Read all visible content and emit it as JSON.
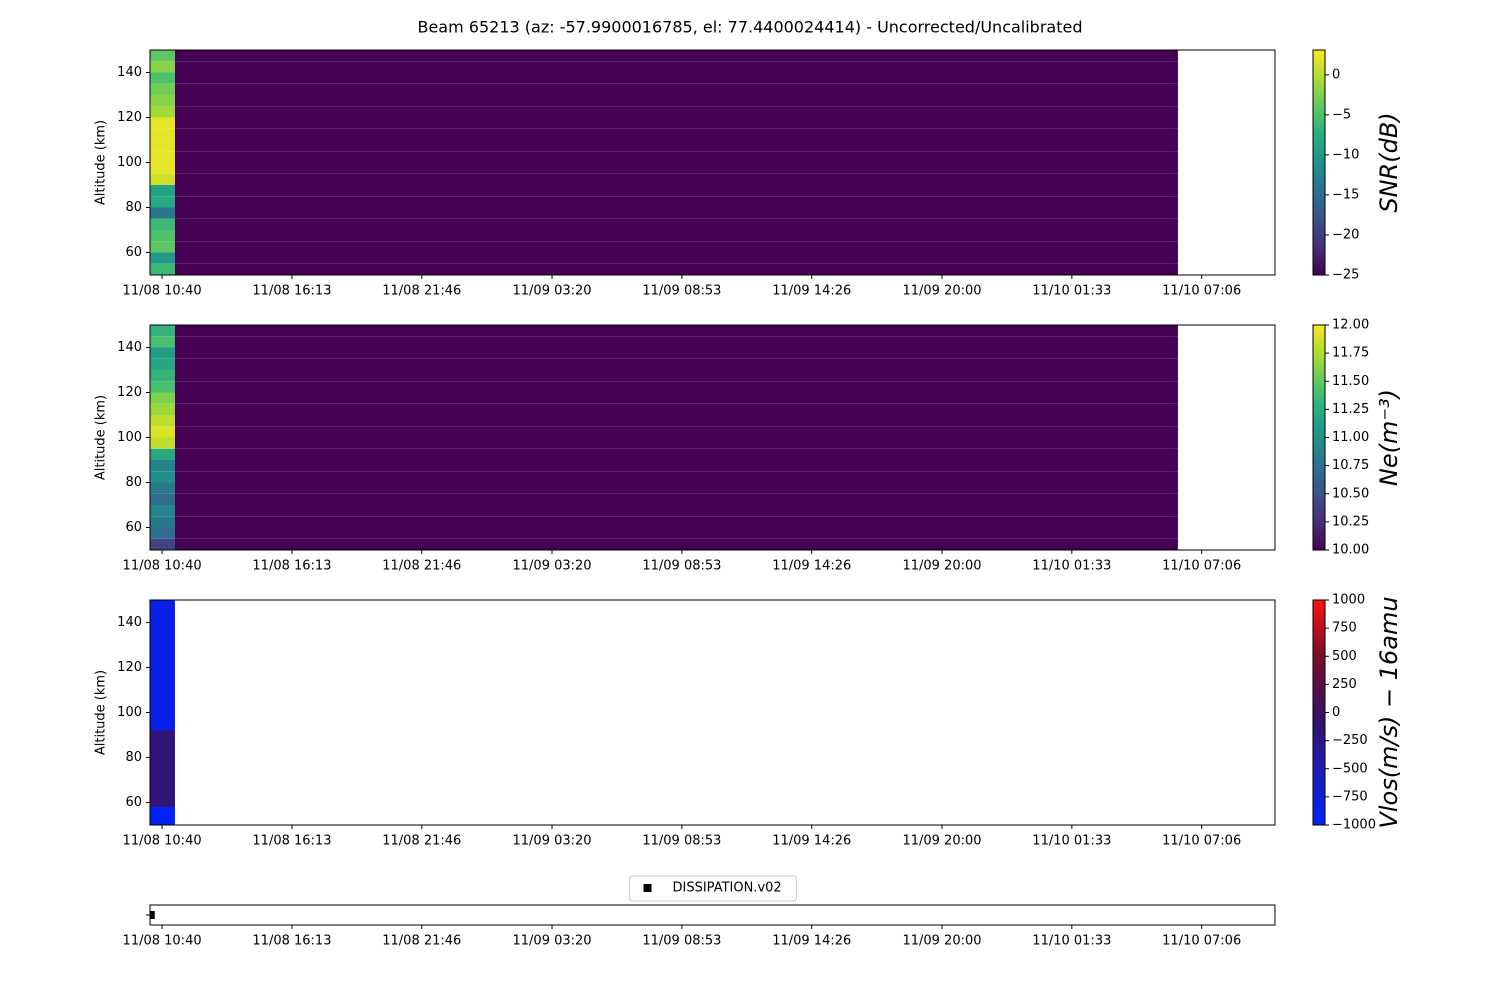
{
  "title": "Beam 65213 (az: -57.9900016785, el: 77.4400024414) - Uncorrected/Uncalibrated",
  "chart_data": [
    {
      "type": "heatmap",
      "ylabel": "Altitude (km)",
      "colorbar_label": "SNR(dB)",
      "xlim": [
        "11/08 10:09",
        "11/10 10:14"
      ],
      "xticks": [
        "11/08 10:40",
        "11/08 16:13",
        "11/08 21:46",
        "11/09 03:20",
        "11/09 08:53",
        "11/09 14:26",
        "11/09 20:00",
        "11/10 01:33",
        "11/10 07:06"
      ],
      "ylim": [
        50,
        150
      ],
      "yticks": [
        60,
        80,
        100,
        120,
        140
      ],
      "x_edges": [
        "11/08 10:09",
        "11/08 11:13",
        "11/10 06:05"
      ],
      "y_edges": [
        50,
        55,
        60,
        65,
        70,
        75,
        80,
        85,
        90,
        95,
        100,
        105,
        110,
        115,
        120,
        125,
        130,
        135,
        140,
        145,
        150
      ],
      "z": [
        [
          -6,
          -10,
          -4,
          -5,
          -6,
          -14,
          -8,
          -9,
          1,
          2,
          2,
          2,
          2,
          2,
          -1,
          -2,
          -3,
          -5,
          -2,
          -4
        ],
        [
          -25,
          -25,
          -25,
          -25,
          -25,
          -25,
          -25,
          -25,
          -25,
          -25,
          -25,
          -25,
          -25,
          -25,
          -25,
          -25,
          -25,
          -25,
          -25,
          -25
        ]
      ],
      "clim": [
        -25,
        3.1
      ],
      "cticks": [
        {
          "value": -25,
          "label": "−25"
        },
        {
          "value": -20,
          "label": "−20"
        },
        {
          "value": -15,
          "label": "−15"
        },
        {
          "value": -10,
          "label": "−10"
        },
        {
          "value": -5,
          "label": "−5"
        },
        0
      ],
      "colormap": [
        "#440154",
        "#472d7b",
        "#3b528b",
        "#2c728e",
        "#21918c",
        "#28ae80",
        "#5ec962",
        "#addc30",
        "#fde725"
      ]
    },
    {
      "type": "heatmap",
      "ylabel": "Altitude (km)",
      "colorbar_label": "Ne(m⁻³)",
      "xlim": [
        "11/08 10:09",
        "11/10 10:14"
      ],
      "xticks": [
        "11/08 10:40",
        "11/08 16:13",
        "11/08 21:46",
        "11/09 03:20",
        "11/09 08:53",
        "11/09 14:26",
        "11/09 20:00",
        "11/10 01:33",
        "11/10 07:06"
      ],
      "ylim": [
        50,
        150
      ],
      "yticks": [
        60,
        80,
        100,
        120,
        140
      ],
      "x_edges": [
        "11/08 10:09",
        "11/08 11:13",
        "11/10 06:05"
      ],
      "y_edges": [
        50,
        55,
        60,
        65,
        70,
        75,
        80,
        85,
        90,
        95,
        100,
        105,
        110,
        115,
        120,
        125,
        130,
        135,
        140,
        145,
        150
      ],
      "z": [
        [
          10.4,
          10.7,
          10.8,
          10.9,
          10.7,
          10.8,
          11.0,
          10.9,
          11.2,
          11.8,
          11.9,
          11.8,
          11.7,
          11.6,
          11.4,
          11.3,
          11.2,
          11.1,
          11.4,
          11.3
        ],
        [
          10,
          10,
          10,
          10,
          10,
          10,
          10,
          10,
          10,
          10,
          10,
          10,
          10,
          10,
          10,
          10,
          10,
          10,
          10,
          10
        ]
      ],
      "clim": [
        10,
        12
      ],
      "cticks": [
        {
          "value": 10,
          "label": "10.00"
        },
        {
          "value": 10.25,
          "label": "10.25"
        },
        {
          "value": 10.5,
          "label": "10.50"
        },
        {
          "value": 10.75,
          "label": "10.75"
        },
        {
          "value": 11,
          "label": "11.00"
        },
        {
          "value": 11.25,
          "label": "11.25"
        },
        {
          "value": 11.5,
          "label": "11.50"
        },
        {
          "value": 11.75,
          "label": "11.75"
        },
        {
          "value": 12,
          "label": "12.00"
        }
      ],
      "colormap": [
        "#440154",
        "#472d7b",
        "#3b528b",
        "#2c728e",
        "#21918c",
        "#28ae80",
        "#5ec962",
        "#addc30",
        "#fde725"
      ]
    },
    {
      "type": "heatmap",
      "ylabel": "Altitude (km)",
      "colorbar_label": "Vlos(m/s) − 16amu",
      "xlim": [
        "11/08 10:09",
        "11/10 10:14"
      ],
      "xticks": [
        "11/08 10:40",
        "11/08 16:13",
        "11/08 21:46",
        "11/09 03:20",
        "11/09 08:53",
        "11/09 14:26",
        "11/09 20:00",
        "11/10 01:33",
        "11/10 07:06"
      ],
      "ylim": [
        50,
        150
      ],
      "yticks": [
        60,
        80,
        100,
        120,
        140
      ],
      "x_edges": [
        "11/08 10:09",
        "11/08 11:13"
      ],
      "y_edges": [
        50,
        58,
        92,
        150
      ],
      "z": [
        [
          -950,
          -150,
          -850
        ]
      ],
      "clim": [
        -1000,
        1000
      ],
      "cticks": [
        {
          "value": -1000,
          "label": "−1000"
        },
        {
          "value": -750,
          "label": "−750"
        },
        {
          "value": -500,
          "label": "−500"
        },
        {
          "value": -250,
          "label": "−250"
        },
        0,
        250,
        500,
        750,
        1000
      ],
      "colormap": [
        "#0022ff",
        "#1f1db0",
        "#3a1060",
        "#7a0e2a",
        "#ff1010"
      ]
    },
    {
      "type": "scatter",
      "xlim": [
        "11/08 10:09",
        "11/10 10:14"
      ],
      "xticks": [
        "11/08 10:40",
        "11/08 16:13",
        "11/08 21:46",
        "11/09 03:20",
        "11/09 08:53",
        "11/09 14:26",
        "11/09 20:00",
        "11/10 01:33",
        "11/10 07:06"
      ],
      "ylim": [
        -1,
        1
      ],
      "series": [
        {
          "name": "DISSIPATION.v02",
          "color": "#000000",
          "x": [
            "11/08 10:11"
          ],
          "values": [
            0
          ]
        }
      ],
      "legend": "upper center"
    }
  ]
}
